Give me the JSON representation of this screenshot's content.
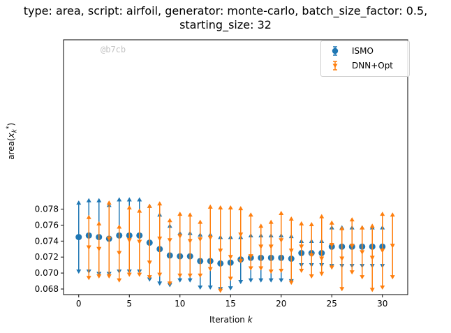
{
  "title_line1": "type: area, script: airfoil, generator: monte-carlo, batch_size_factor: 0.5,",
  "title_line2": "starting_size: 32",
  "watermark": "@b7cb",
  "colors": {
    "ismo": "#1f77b4",
    "dnn": "#ff7f0e"
  },
  "chart_data": {
    "type": "scatter",
    "xlabel": "Iteration k",
    "ylabel": "area(x_k^*)",
    "xlim": [
      -1.5,
      32.5
    ],
    "ylim": [
      0.0673,
      0.0992
    ],
    "xticks": [
      "0",
      "5",
      "10",
      "15",
      "20",
      "25",
      "30"
    ],
    "yticks": [
      "0.068",
      "0.070",
      "0.072",
      "0.074",
      "0.076",
      "0.078"
    ],
    "legend_position": "top-right",
    "series": [
      {
        "name": "ISMO",
        "marker": "circle",
        "x": [
          0,
          1,
          2,
          3,
          4,
          5,
          6,
          7,
          8,
          9,
          10,
          11,
          12,
          13,
          14,
          15,
          16,
          17,
          18,
          19,
          20,
          21,
          22,
          23,
          24,
          25,
          26,
          27,
          28,
          29,
          30
        ],
        "y": [
          0.0745,
          0.0747,
          0.0745,
          0.0743,
          0.0747,
          0.0747,
          0.0747,
          0.0738,
          0.073,
          0.0722,
          0.0721,
          0.0721,
          0.0715,
          0.0715,
          0.0712,
          0.0713,
          0.0717,
          0.0719,
          0.0719,
          0.0719,
          0.0719,
          0.0718,
          0.0725,
          0.0725,
          0.0725,
          0.0733,
          0.0733,
          0.0733,
          0.0733,
          0.0733,
          0.0733
        ],
        "upper": [
          0.079,
          0.0793,
          0.0793,
          0.0787,
          0.0794,
          0.0794,
          0.0794,
          0.0786,
          0.0775,
          0.0761,
          0.0752,
          0.0752,
          0.075,
          0.075,
          0.0747,
          0.0747,
          0.0747,
          0.0749,
          0.0749,
          0.0749,
          0.0749,
          0.0748,
          0.0742,
          0.0742,
          0.0742,
          0.0759,
          0.0759,
          0.0759,
          0.0759,
          0.0759,
          0.0759
        ],
        "lower": [
          0.07,
          0.07,
          0.0697,
          0.0697,
          0.07,
          0.07,
          0.07,
          0.069,
          0.0685,
          0.0683,
          0.0689,
          0.0689,
          0.068,
          0.068,
          0.0678,
          0.0679,
          0.0687,
          0.0689,
          0.0689,
          0.0689,
          0.0689,
          0.0688,
          0.0708,
          0.0708,
          0.0708,
          0.0707,
          0.0707,
          0.0707,
          0.0707,
          0.0707,
          0.0707
        ]
      },
      {
        "name": "DNN+Opt",
        "marker": "triangle",
        "x": [
          1,
          2,
          3,
          4,
          5,
          6,
          7,
          8,
          9,
          10,
          11,
          12,
          13,
          14,
          15,
          16,
          17,
          18,
          19,
          20,
          21,
          22,
          23,
          24,
          25,
          26,
          27,
          28,
          29,
          30,
          31
        ],
        "y": [
          0.0732,
          0.073,
          0.0743,
          0.0725,
          0.0741,
          0.0739,
          0.0713,
          0.0743,
          0.0741,
          0.0746,
          0.074,
          0.0742,
          0.0744,
          0.0728,
          0.072,
          0.0748,
          0.0721,
          0.0733,
          0.0733,
          0.0741,
          0.0728,
          0.0733,
          0.0722,
          0.0718,
          0.0735,
          0.0718,
          0.0734,
          0.0726,
          0.0719,
          0.0728,
          0.0734
        ],
        "upper": [
          0.0772,
          0.0764,
          0.079,
          0.076,
          0.0784,
          0.078,
          0.0786,
          0.0789,
          0.0768,
          0.0776,
          0.0775,
          0.0766,
          0.0785,
          0.0784,
          0.0784,
          0.0783,
          0.0775,
          0.0761,
          0.0766,
          0.0777,
          0.077,
          0.0764,
          0.0763,
          0.0773,
          0.0765,
          0.0758,
          0.0769,
          0.0759,
          0.0761,
          0.0776,
          0.0775
        ],
        "lower": [
          0.0692,
          0.0694,
          0.0694,
          0.0689,
          0.0696,
          0.0696,
          0.0693,
          0.0696,
          0.0685,
          0.0695,
          0.0695,
          0.0695,
          0.0703,
          0.0676,
          0.0691,
          0.0713,
          0.0704,
          0.0704,
          0.07,
          0.0701,
          0.0686,
          0.0701,
          0.0694,
          0.0697,
          0.0705,
          0.0678,
          0.0699,
          0.0693,
          0.0677,
          0.068,
          0.0693
        ]
      }
    ]
  }
}
